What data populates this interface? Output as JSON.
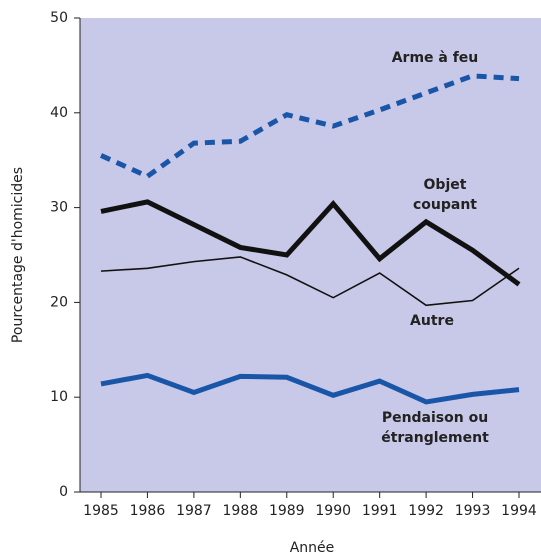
{
  "chart_data": {
    "type": "line",
    "x_label": "Année",
    "y_label": "Pourcentage d'homicides",
    "x": [
      1985,
      1986,
      1987,
      1988,
      1989,
      1990,
      1991,
      1992,
      1993,
      1994
    ],
    "xlim": [
      1985,
      1994
    ],
    "xticks": [
      1985,
      1986,
      1987,
      1988,
      1989,
      1990,
      1991,
      1992,
      1993,
      1994
    ],
    "ylim": [
      0,
      50
    ],
    "yticks": [
      0,
      10,
      20,
      30,
      40,
      50
    ],
    "grid": false,
    "background": "#c8c8e8",
    "series": [
      {
        "name": "Arme à feu",
        "color": "#1a56a8",
        "style": "dashed",
        "values": [
          35.5,
          33.3,
          36.8,
          37.0,
          39.8,
          38.6,
          40.3,
          42.1,
          43.9,
          43.6
        ]
      },
      {
        "name": "Objet coupant",
        "color": "#111111",
        "style": "thick",
        "values": [
          29.6,
          30.6,
          28.2,
          25.8,
          25.0,
          30.4,
          24.6,
          28.5,
          25.5,
          21.9
        ]
      },
      {
        "name": "Autre",
        "color": "#111111",
        "style": "thin",
        "values": [
          23.3,
          23.6,
          24.3,
          24.8,
          22.9,
          20.5,
          23.1,
          19.7,
          20.2,
          23.6
        ]
      },
      {
        "name": "Pendaison ou étranglement",
        "color": "#1a56a8",
        "style": "thick",
        "values": [
          11.4,
          12.3,
          10.5,
          12.2,
          12.1,
          10.2,
          11.7,
          9.5,
          10.3,
          10.8
        ]
      }
    ]
  }
}
